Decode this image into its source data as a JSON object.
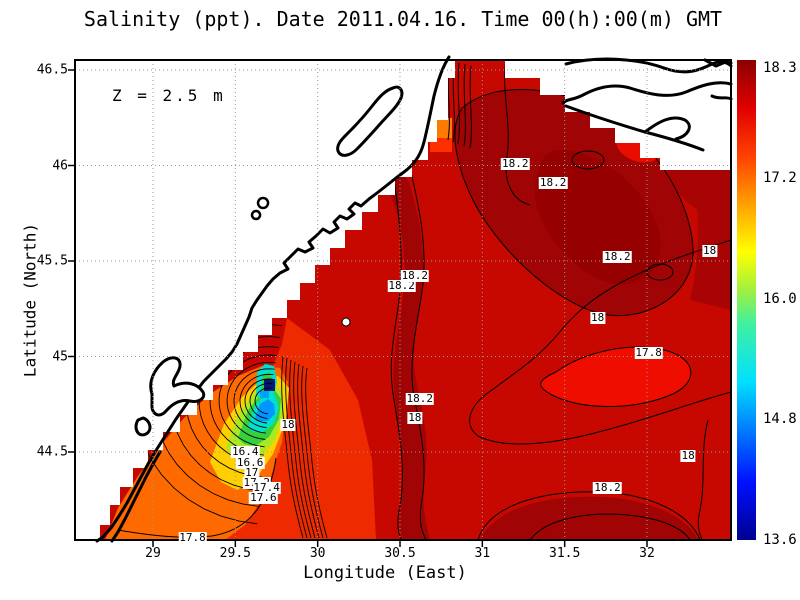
{
  "chart_data": {
    "type": "heatmap",
    "variable": "Salinity (ppt)",
    "title": "Salinity (ppt). Date 2011.04.16. Time 00(h):00(m) GMT",
    "xlabel": "Longitude (East)",
    "ylabel": "Latitude (North)",
    "annotation": "Z = 2.5 m",
    "x_ticks": [
      "29",
      "29.5",
      "30",
      "30.5",
      "31",
      "31.5",
      "32"
    ],
    "y_ticks": [
      "46.5",
      "46",
      "45.5",
      "45",
      "44.5"
    ],
    "xlim": [
      28.53,
      32.51
    ],
    "ylim": [
      44.04,
      46.55
    ],
    "grid": true,
    "contour_interval": 0.2,
    "colorbar": {
      "min": 13.6,
      "max": 18.3,
      "tick_labels": [
        "18.3",
        "17.2",
        "16.0",
        "14.8",
        "13.6"
      ],
      "colormap": "jet",
      "stops": [
        {
          "frac": 0.0,
          "color": "#000090"
        },
        {
          "frac": 0.12,
          "color": "#0010ff"
        },
        {
          "frac": 0.33,
          "color": "#00e0ff"
        },
        {
          "frac": 0.45,
          "color": "#40f0a0"
        },
        {
          "frac": 0.52,
          "color": "#a0f040"
        },
        {
          "frac": 0.6,
          "color": "#ffff00"
        },
        {
          "frac": 0.7,
          "color": "#ffa000"
        },
        {
          "frac": 0.8,
          "color": "#ff4000"
        },
        {
          "frac": 0.9,
          "color": "#e00000"
        },
        {
          "frac": 1.0,
          "color": "#8a0000"
        }
      ]
    },
    "contour_labels": [
      {
        "value": "18.2",
        "lon": 31.2,
        "lat": 46.01
      },
      {
        "value": "18.2",
        "lon": 31.43,
        "lat": 45.91
      },
      {
        "value": "18.2",
        "lon": 31.82,
        "lat": 45.52
      },
      {
        "value": "18",
        "lon": 32.38,
        "lat": 45.55
      },
      {
        "value": "18",
        "lon": 31.7,
        "lat": 45.2
      },
      {
        "value": "17.8",
        "lon": 32.01,
        "lat": 45.02
      },
      {
        "value": "18.2",
        "lon": 30.51,
        "lat": 45.37
      },
      {
        "value": "18.2",
        "lon": 30.59,
        "lat": 45.42
      },
      {
        "value": "18.2",
        "lon": 30.62,
        "lat": 44.78
      },
      {
        "value": "18",
        "lon": 30.59,
        "lat": 44.68
      },
      {
        "value": "18",
        "lon": 32.25,
        "lat": 44.48
      },
      {
        "value": "18.2",
        "lon": 31.76,
        "lat": 44.31
      },
      {
        "value": "18",
        "lon": 29.82,
        "lat": 44.64
      },
      {
        "value": "16.4",
        "lon": 29.56,
        "lat": 44.5
      },
      {
        "value": "16.6",
        "lon": 29.59,
        "lat": 44.44
      },
      {
        "value": "17",
        "lon": 29.6,
        "lat": 44.39
      },
      {
        "value": "17.2",
        "lon": 29.63,
        "lat": 44.34
      },
      {
        "value": "17.4",
        "lon": 29.69,
        "lat": 44.31
      },
      {
        "value": "17.6",
        "lon": 29.67,
        "lat": 44.26
      },
      {
        "value": "17.8",
        "lon": 29.24,
        "lat": 44.05
      }
    ],
    "station_marker": {
      "lon": 30.17,
      "lat": 45.18
    }
  }
}
